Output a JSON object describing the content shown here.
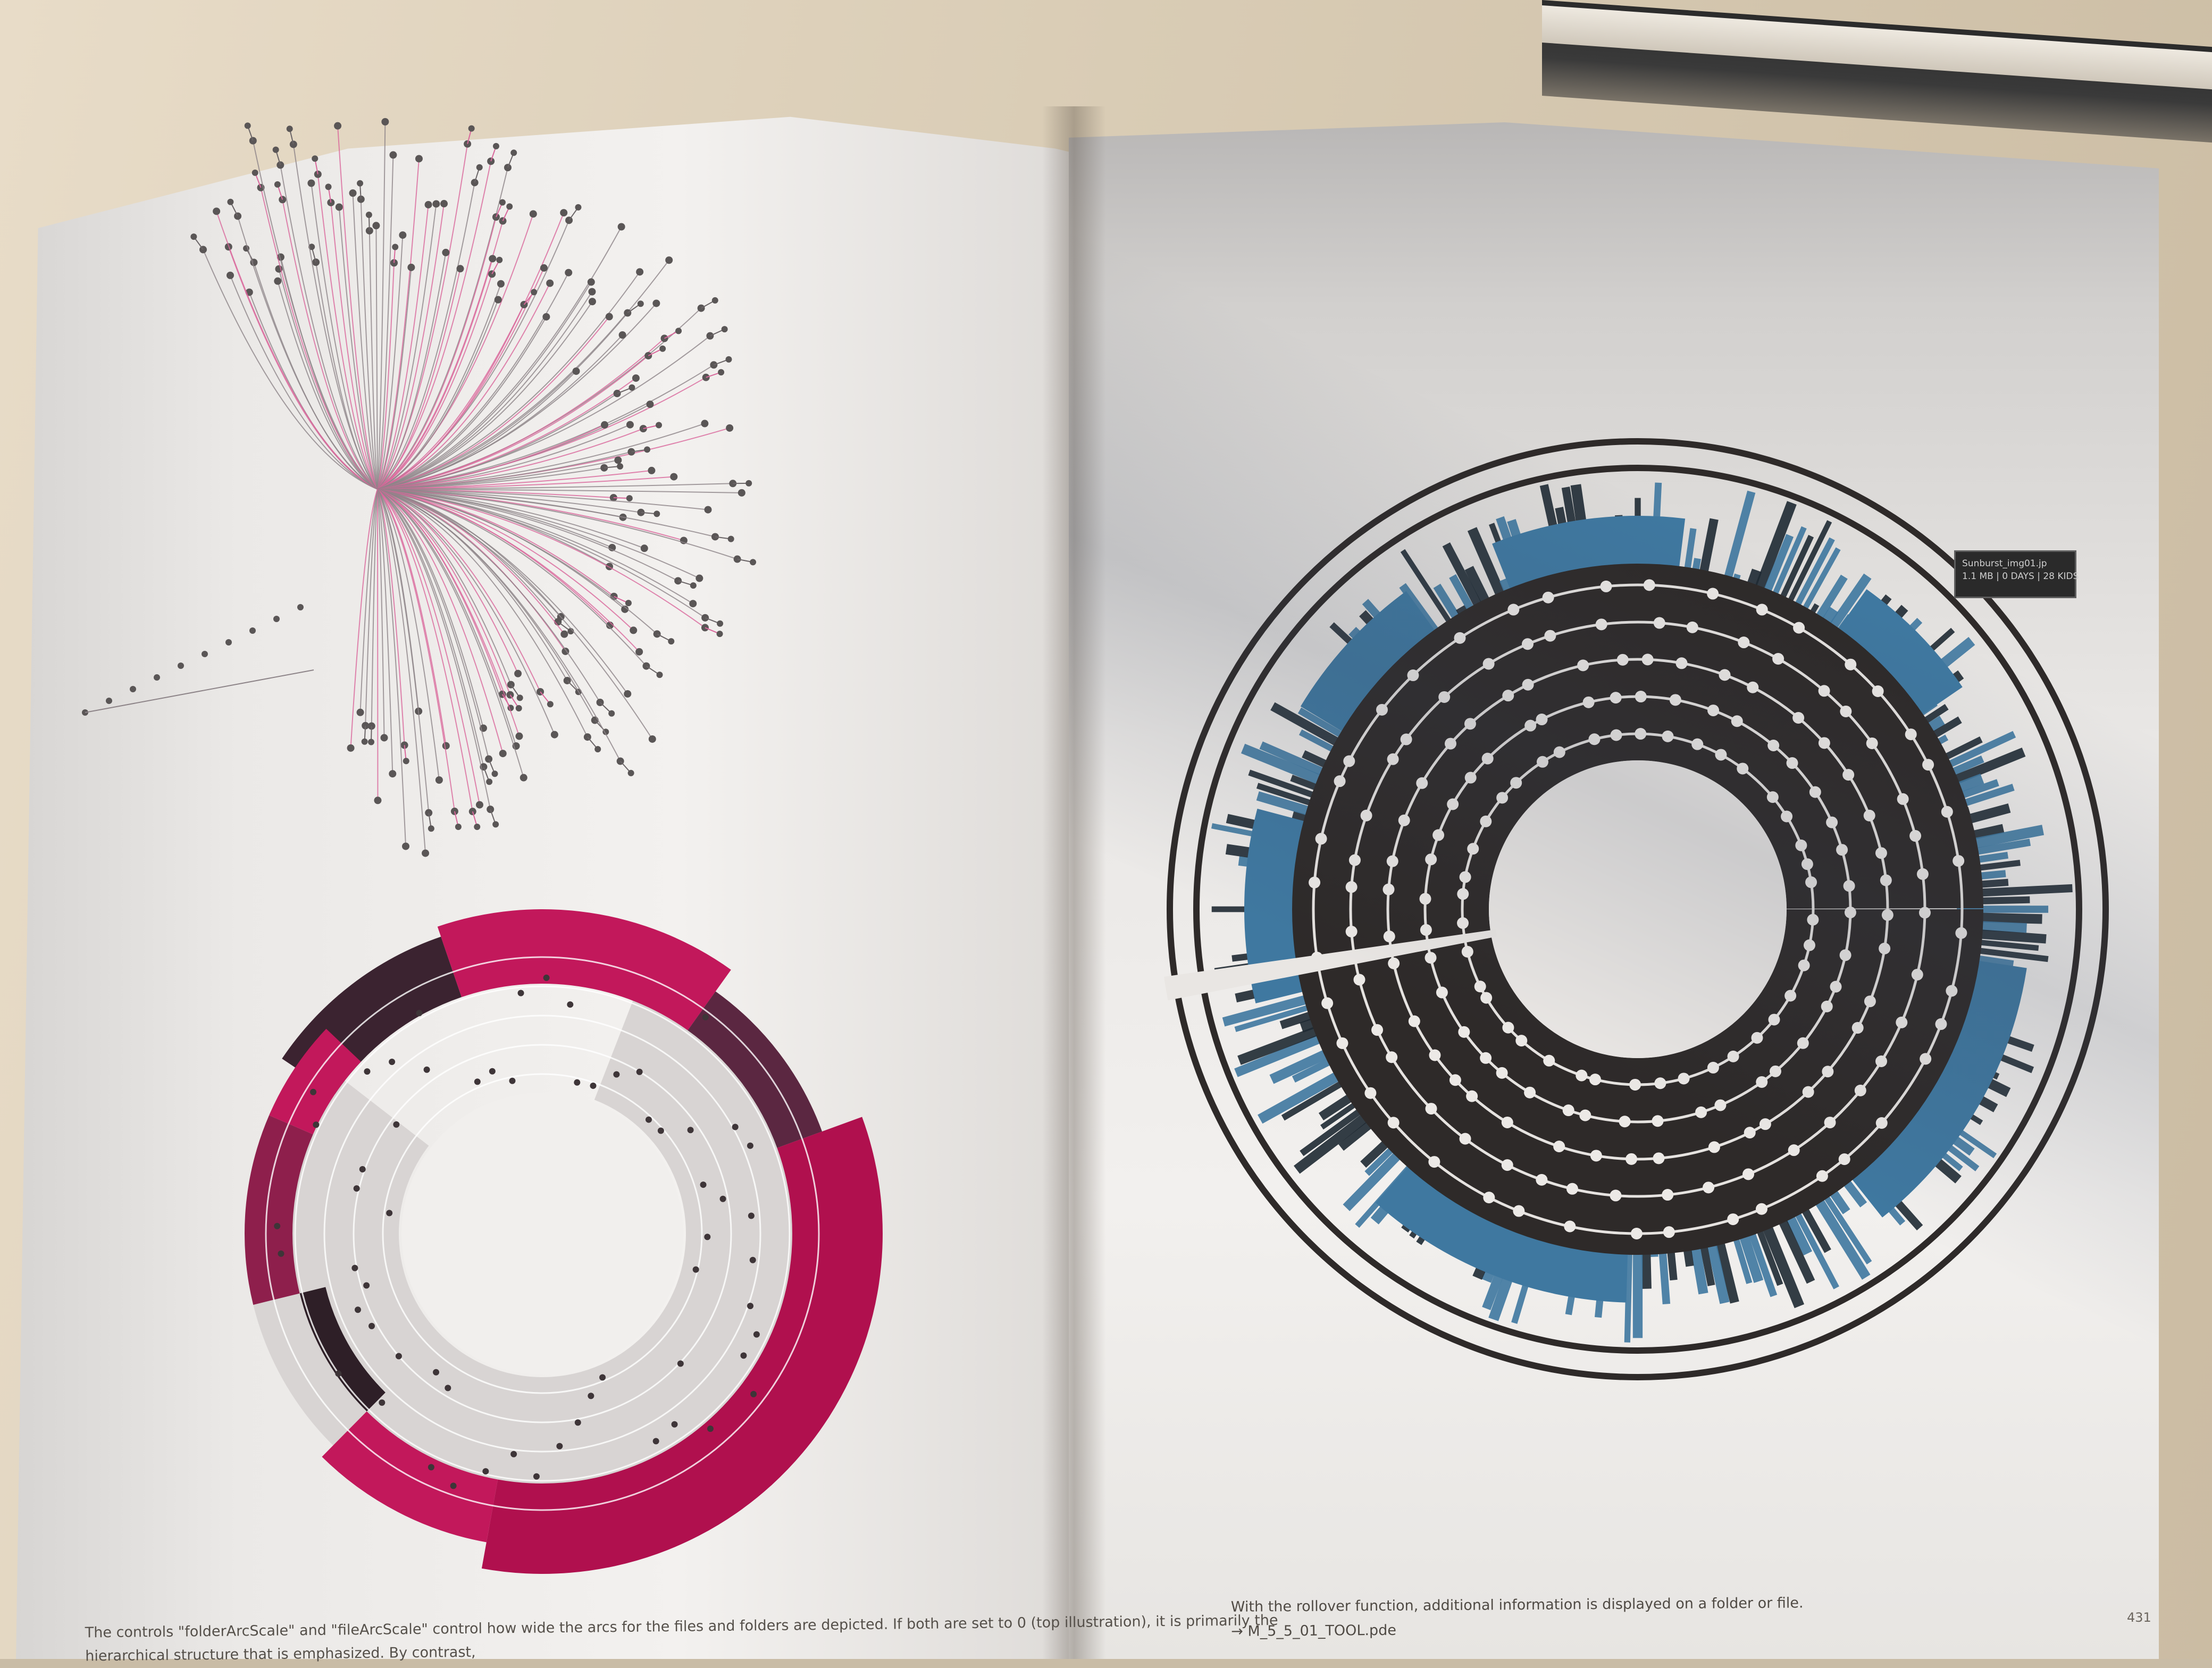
{
  "caption_left": {
    "line1": "The controls \"folderArcScale\" and \"fileArcScale\" control how wide the arcs for the files and folders are depicted. If both are set to 0 (top illustration), it is primarily the",
    "line2": "hierarchical structure that is emphasized. By contrast,"
  },
  "caption_right": {
    "line1": "With the rollover function, additional information is displayed on a folder or file.",
    "line2": "→ M_5_5_01_TOOL.pde"
  },
  "page_number": "431",
  "tooltip": {
    "name": "Sunburst_img01.jp",
    "stats": "1.1 MB | 0 DAYS | 28 KIDS"
  },
  "colors": {
    "magenta": "#c2185b",
    "dark_plum": "#3b2330",
    "steel_blue": "#3f78a0",
    "charcoal": "#2e2a29"
  }
}
